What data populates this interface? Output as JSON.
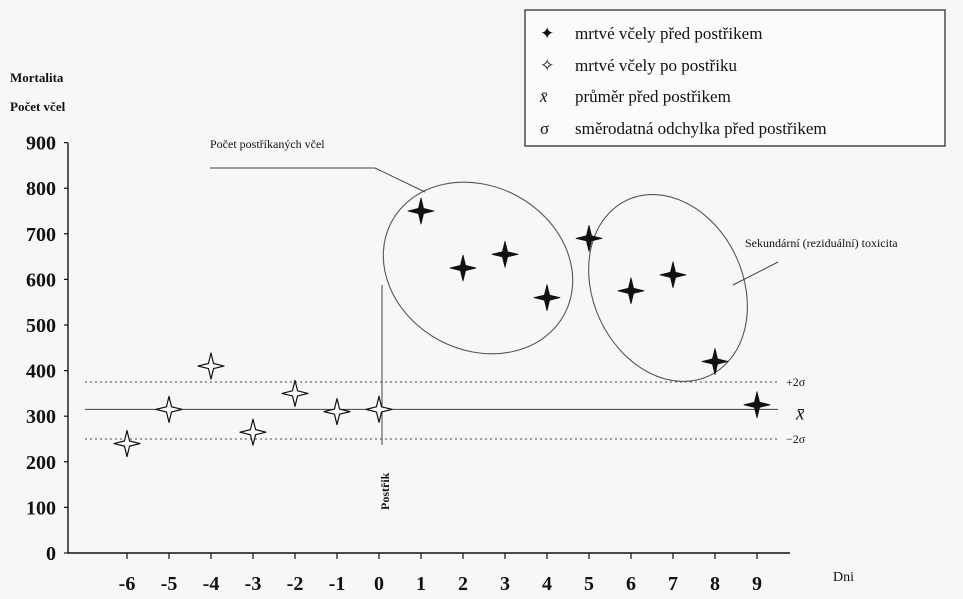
{
  "chart_data": {
    "type": "scatter",
    "ylabel_line1": "Mortalita",
    "ylabel_line2": "Počet včel",
    "xlabel": "Dni",
    "ylim": [
      0,
      900
    ],
    "xlim": [
      -6,
      9
    ],
    "y_ticks": [
      0,
      100,
      200,
      300,
      400,
      500,
      600,
      700,
      800,
      900
    ],
    "x_ticks": [
      -6,
      -5,
      -4,
      -3,
      -2,
      -1,
      0,
      1,
      2,
      3,
      4,
      5,
      6,
      7,
      8,
      9
    ],
    "series": [
      {
        "name": "mrtvé včely před postřikem",
        "marker": "filled-star",
        "x": [
          1,
          2,
          3,
          4,
          5,
          6,
          7,
          8,
          9
        ],
        "y": [
          750,
          625,
          655,
          560,
          690,
          575,
          610,
          420,
          325
        ]
      },
      {
        "name": "mrtvé včely po postřiku",
        "marker": "open-star",
        "x": [
          -6,
          -5,
          -4,
          -3,
          -2,
          -1,
          0
        ],
        "y": [
          240,
          315,
          410,
          265,
          350,
          310,
          315
        ]
      }
    ],
    "reference_lines": [
      {
        "label": "+2σ",
        "value": 375,
        "style": "dotted"
      },
      {
        "label": "x̄",
        "value": 315,
        "style": "solid"
      },
      {
        "label": "−2σ",
        "value": 250,
        "style": "dotted"
      }
    ],
    "legend": {
      "placement": "top-right",
      "items": [
        {
          "symbol": "✦",
          "text": "mrtvé včely před postřikem"
        },
        {
          "symbol": "✧",
          "text": "mrtvé včely po postřiku"
        },
        {
          "symbol": "x̄",
          "text": "průměr před postřikem"
        },
        {
          "symbol": "σ",
          "text": "směrodatná odchylka před postřikem"
        }
      ]
    },
    "annotations": {
      "sprayed": "Počet postříkaných včel",
      "secondary": "Sekundární (reziduální) toxicita",
      "spray_day": "Postřik"
    },
    "grid": false,
    "colors": {
      "ink": "#111111",
      "background": "#f7f7f5",
      "reference": "#555555"
    }
  }
}
